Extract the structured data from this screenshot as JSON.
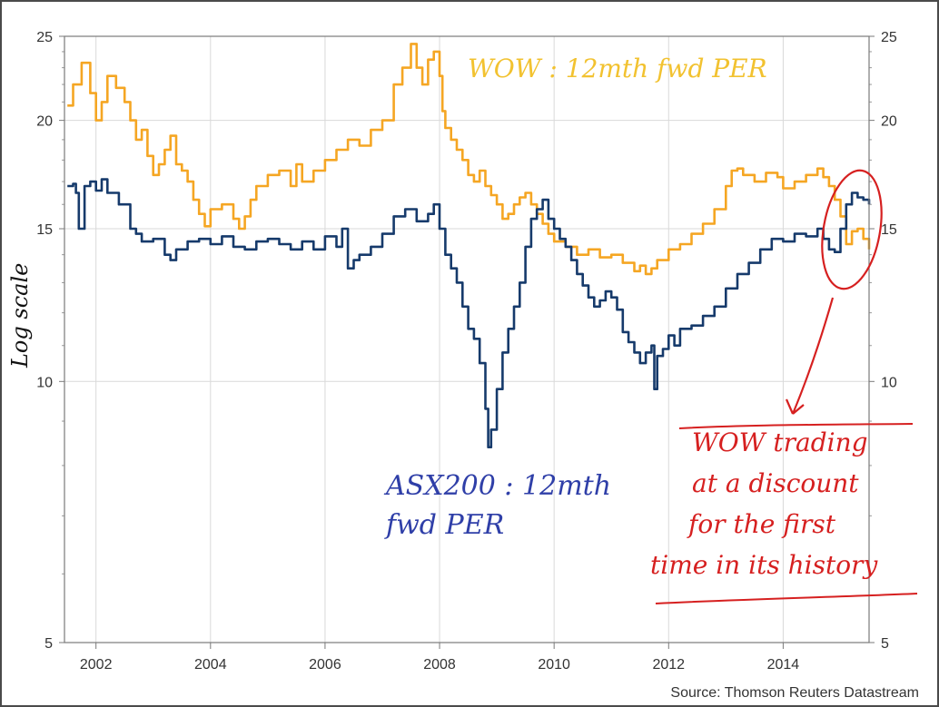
{
  "chart_data": {
    "type": "line",
    "y_scale": "log",
    "ylim": [
      5,
      25
    ],
    "xlim": [
      2001.45,
      2015.5
    ],
    "y_ticks": [
      "25",
      "20",
      "15",
      "10",
      "5"
    ],
    "x_ticks": [
      "2002",
      "2004",
      "2006",
      "2008",
      "2010",
      "2012",
      "2014"
    ],
    "grid": true,
    "series": [
      {
        "name": "WOW : 12mth fwd PER",
        "color": "#f5a623",
        "x": [
          2001.5,
          2001.6,
          2001.75,
          2001.9,
          2002.0,
          2002.1,
          2002.2,
          2002.35,
          2002.5,
          2002.6,
          2002.7,
          2002.8,
          2002.9,
          2003.0,
          2003.1,
          2003.2,
          2003.3,
          2003.4,
          2003.5,
          2003.6,
          2003.7,
          2003.8,
          2003.9,
          2004.0,
          2004.2,
          2004.4,
          2004.5,
          2004.6,
          2004.7,
          2004.8,
          2005.0,
          2005.2,
          2005.4,
          2005.5,
          2005.6,
          2005.8,
          2006.0,
          2006.2,
          2006.4,
          2006.6,
          2006.8,
          2007.0,
          2007.2,
          2007.35,
          2007.5,
          2007.6,
          2007.7,
          2007.8,
          2007.9,
          2008.0,
          2008.05,
          2008.1,
          2008.2,
          2008.3,
          2008.4,
          2008.5,
          2008.6,
          2008.7,
          2008.8,
          2008.9,
          2009.0,
          2009.1,
          2009.2,
          2009.3,
          2009.4,
          2009.5,
          2009.6,
          2009.7,
          2009.8,
          2009.9,
          2010.0,
          2010.2,
          2010.4,
          2010.6,
          2010.8,
          2011.0,
          2011.2,
          2011.4,
          2011.5,
          2011.6,
          2011.7,
          2011.8,
          2012.0,
          2012.2,
          2012.4,
          2012.6,
          2012.8,
          2013.0,
          2013.1,
          2013.2,
          2013.3,
          2013.5,
          2013.7,
          2013.9,
          2014.0,
          2014.2,
          2014.4,
          2014.6,
          2014.7,
          2014.8,
          2014.9,
          2015.0,
          2015.1,
          2015.2,
          2015.3,
          2015.4,
          2015.5
        ],
        "values": [
          20.8,
          22.0,
          23.3,
          21.5,
          20.0,
          21.0,
          22.5,
          21.8,
          21.0,
          20.0,
          19.0,
          19.5,
          18.2,
          17.3,
          17.8,
          18.5,
          19.2,
          17.8,
          17.5,
          17.0,
          16.2,
          15.6,
          15.1,
          15.8,
          16.0,
          15.4,
          15.0,
          15.5,
          16.2,
          16.8,
          17.3,
          17.5,
          16.8,
          17.8,
          17.0,
          17.5,
          18.0,
          18.5,
          19.0,
          18.7,
          19.5,
          20.0,
          22.0,
          23.0,
          24.5,
          23.0,
          22.0,
          23.5,
          24.0,
          22.5,
          20.5,
          19.6,
          19.0,
          18.5,
          18.0,
          17.3,
          17.0,
          17.5,
          16.8,
          16.4,
          16.0,
          15.4,
          15.6,
          16.0,
          16.3,
          16.5,
          16.0,
          15.6,
          15.2,
          14.8,
          14.5,
          14.3,
          14.0,
          14.2,
          13.9,
          14.0,
          13.7,
          13.4,
          13.6,
          13.3,
          13.5,
          13.8,
          14.2,
          14.4,
          14.8,
          15.2,
          15.8,
          16.8,
          17.5,
          17.6,
          17.3,
          17.0,
          17.4,
          17.2,
          16.7,
          17.0,
          17.3,
          17.6,
          17.2,
          16.8,
          16.2,
          15.5,
          14.4,
          14.9,
          15.0,
          14.6,
          14.2
        ]
      },
      {
        "name": "ASX200 : 12mth fwd PER",
        "color": "#163a6b",
        "x": [
          2001.5,
          2001.6,
          2001.65,
          2001.7,
          2001.8,
          2001.9,
          2002.0,
          2002.1,
          2002.2,
          2002.4,
          2002.6,
          2002.7,
          2002.8,
          2003.0,
          2003.2,
          2003.3,
          2003.4,
          2003.6,
          2003.8,
          2004.0,
          2004.2,
          2004.4,
          2004.6,
          2004.8,
          2005.0,
          2005.2,
          2005.4,
          2005.6,
          2005.8,
          2006.0,
          2006.2,
          2006.3,
          2006.4,
          2006.5,
          2006.6,
          2006.8,
          2007.0,
          2007.2,
          2007.4,
          2007.6,
          2007.8,
          2007.9,
          2008.0,
          2008.1,
          2008.2,
          2008.3,
          2008.4,
          2008.5,
          2008.6,
          2008.7,
          2008.8,
          2008.85,
          2008.9,
          2009.0,
          2009.1,
          2009.2,
          2009.3,
          2009.4,
          2009.5,
          2009.6,
          2009.7,
          2009.8,
          2009.9,
          2010.0,
          2010.1,
          2010.2,
          2010.3,
          2010.4,
          2010.5,
          2010.6,
          2010.7,
          2010.8,
          2010.9,
          2011.0,
          2011.1,
          2011.2,
          2011.3,
          2011.4,
          2011.5,
          2011.6,
          2011.7,
          2011.75,
          2011.8,
          2011.9,
          2012.0,
          2012.1,
          2012.2,
          2012.4,
          2012.6,
          2012.8,
          2013.0,
          2013.2,
          2013.4,
          2013.6,
          2013.8,
          2014.0,
          2014.2,
          2014.4,
          2014.6,
          2014.7,
          2014.8,
          2014.9,
          2015.0,
          2015.1,
          2015.2,
          2015.3,
          2015.4,
          2015.5
        ],
        "values": [
          16.8,
          16.9,
          16.5,
          15.0,
          16.8,
          17.0,
          16.6,
          17.1,
          16.5,
          16.0,
          15.0,
          14.8,
          14.5,
          14.6,
          14.0,
          13.8,
          14.2,
          14.5,
          14.6,
          14.4,
          14.7,
          14.3,
          14.2,
          14.5,
          14.6,
          14.4,
          14.2,
          14.5,
          14.2,
          14.7,
          14.3,
          15.0,
          13.5,
          13.8,
          14.0,
          14.3,
          14.8,
          15.5,
          15.8,
          15.3,
          15.6,
          16.0,
          15.0,
          14.0,
          13.5,
          13.0,
          12.2,
          11.5,
          11.2,
          10.5,
          9.3,
          8.4,
          8.8,
          9.8,
          10.8,
          11.5,
          12.2,
          13.0,
          14.3,
          15.4,
          15.8,
          16.2,
          15.4,
          15.0,
          14.6,
          14.3,
          13.8,
          13.3,
          12.9,
          12.5,
          12.2,
          12.4,
          12.7,
          12.5,
          12.1,
          11.4,
          11.1,
          10.8,
          10.5,
          10.8,
          11.0,
          9.8,
          10.7,
          10.9,
          11.3,
          11.0,
          11.5,
          11.6,
          11.9,
          12.2,
          12.8,
          13.3,
          13.7,
          14.2,
          14.6,
          14.5,
          14.8,
          14.7,
          15.0,
          14.6,
          14.2,
          14.1,
          15.0,
          16.0,
          16.5,
          16.3,
          16.2,
          16.0
        ]
      }
    ],
    "annotations": {
      "wow_label": "WOW : 12mth fwd PER",
      "asx_label_line1": "ASX200 : 12mth",
      "asx_label_line2": "fwd PER",
      "y_axis_note": "Log scale",
      "callout_line1": "WOW trading",
      "callout_line2": "at a discount",
      "callout_line3": "for the first",
      "callout_line4": "time in its history",
      "source": "Source: Thomson Reuters Datastream"
    }
  }
}
